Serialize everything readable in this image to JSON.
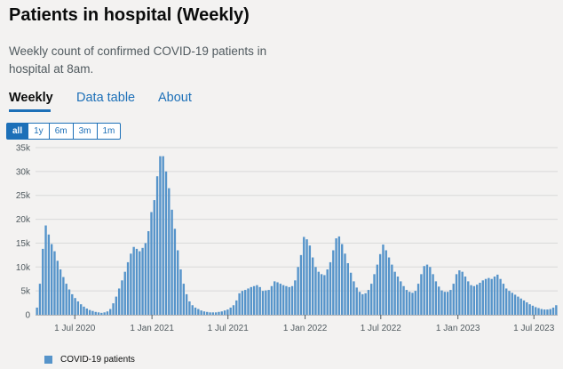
{
  "header": {
    "title": "Patients in hospital (Weekly)",
    "subtitle": "Weekly count of confirmed COVID-19 patients in hospital at 8am."
  },
  "tabs": [
    {
      "label": "Weekly",
      "active": true
    },
    {
      "label": "Data table",
      "active": false
    },
    {
      "label": "About",
      "active": false
    }
  ],
  "range_buttons": [
    {
      "label": "all",
      "active": true
    },
    {
      "label": "1y",
      "active": false
    },
    {
      "label": "6m",
      "active": false
    },
    {
      "label": "3m",
      "active": false
    },
    {
      "label": "1m",
      "active": false
    }
  ],
  "colors": {
    "bar": "#5694ca",
    "grid": "#d9d9d9",
    "axis": "#505a5f",
    "accent": "#1d70b8"
  },
  "chart_data": {
    "type": "bar",
    "title": "Patients in hospital (Weekly)",
    "xlabel": "",
    "ylabel": "",
    "ylim": [
      0,
      35000
    ],
    "y_ticks": [
      0,
      5000,
      10000,
      15000,
      20000,
      25000,
      30000,
      35000
    ],
    "y_tick_labels": [
      "0",
      "5k",
      "10k",
      "15k",
      "20k",
      "25k",
      "30k",
      "35k"
    ],
    "x_start_week": 0,
    "x_ticks": [
      {
        "label": "1 Jul 2020",
        "week": 13.4
      },
      {
        "label": "1 Jan 2021",
        "week": 39.7
      },
      {
        "label": "1 Jul 2021",
        "week": 65.6
      },
      {
        "label": "1 Jan 2022",
        "week": 91.9
      },
      {
        "label": "1 Jul 2022",
        "week": 117.7
      },
      {
        "label": "1 Jan 2023",
        "week": 144.0
      },
      {
        "label": "1 Jul 2023",
        "week": 169.9
      }
    ],
    "legend": [
      {
        "name": "COVID-19 patients",
        "position": "bottom-left"
      }
    ],
    "series": [
      {
        "name": "COVID-19 patients",
        "values": [
          1500,
          6500,
          13800,
          18700,
          16800,
          14800,
          13300,
          11300,
          9500,
          7900,
          6500,
          5300,
          4300,
          3500,
          2800,
          2200,
          1700,
          1300,
          1000,
          800,
          600,
          500,
          400,
          500,
          700,
          1200,
          2400,
          3800,
          5500,
          7200,
          9000,
          11000,
          12800,
          14200,
          13800,
          13300,
          14000,
          15000,
          17500,
          21500,
          24000,
          29000,
          33200,
          33200,
          30000,
          26500,
          22000,
          18000,
          13500,
          9500,
          6500,
          4300,
          2800,
          2000,
          1500,
          1200,
          900,
          700,
          600,
          500,
          500,
          500,
          600,
          700,
          900,
          1100,
          1500,
          2000,
          3000,
          4500,
          5000,
          5200,
          5500,
          5800,
          6000,
          6200,
          5800,
          5000,
          5100,
          5200,
          6000,
          7000,
          6800,
          6500,
          6200,
          6000,
          5800,
          6000,
          7200,
          10000,
          12500,
          16300,
          15800,
          14500,
          12000,
          10000,
          9000,
          8500,
          8300,
          9500,
          11000,
          13500,
          16000,
          16400,
          14800,
          12800,
          10800,
          8800,
          7000,
          5700,
          4800,
          4300,
          4500,
          5200,
          6500,
          8500,
          10500,
          12700,
          14700,
          13500,
          12000,
          10500,
          9000,
          8000,
          7000,
          6000,
          5200,
          4800,
          4600,
          5000,
          6500,
          8500,
          10200,
          10500,
          10000,
          8500,
          7000,
          5900,
          5100,
          4800,
          4800,
          5200,
          6500,
          8500,
          9300,
          9000,
          8000,
          7000,
          6200,
          6000,
          6300,
          6700,
          7200,
          7500,
          7700,
          7500,
          8000,
          8400,
          7500,
          6500,
          5500,
          5000,
          4600,
          4200,
          3800,
          3400,
          3000,
          2600,
          2200,
          1900,
          1600,
          1400,
          1200,
          1100,
          1100,
          1200,
          1500,
          2000
        ]
      }
    ]
  }
}
